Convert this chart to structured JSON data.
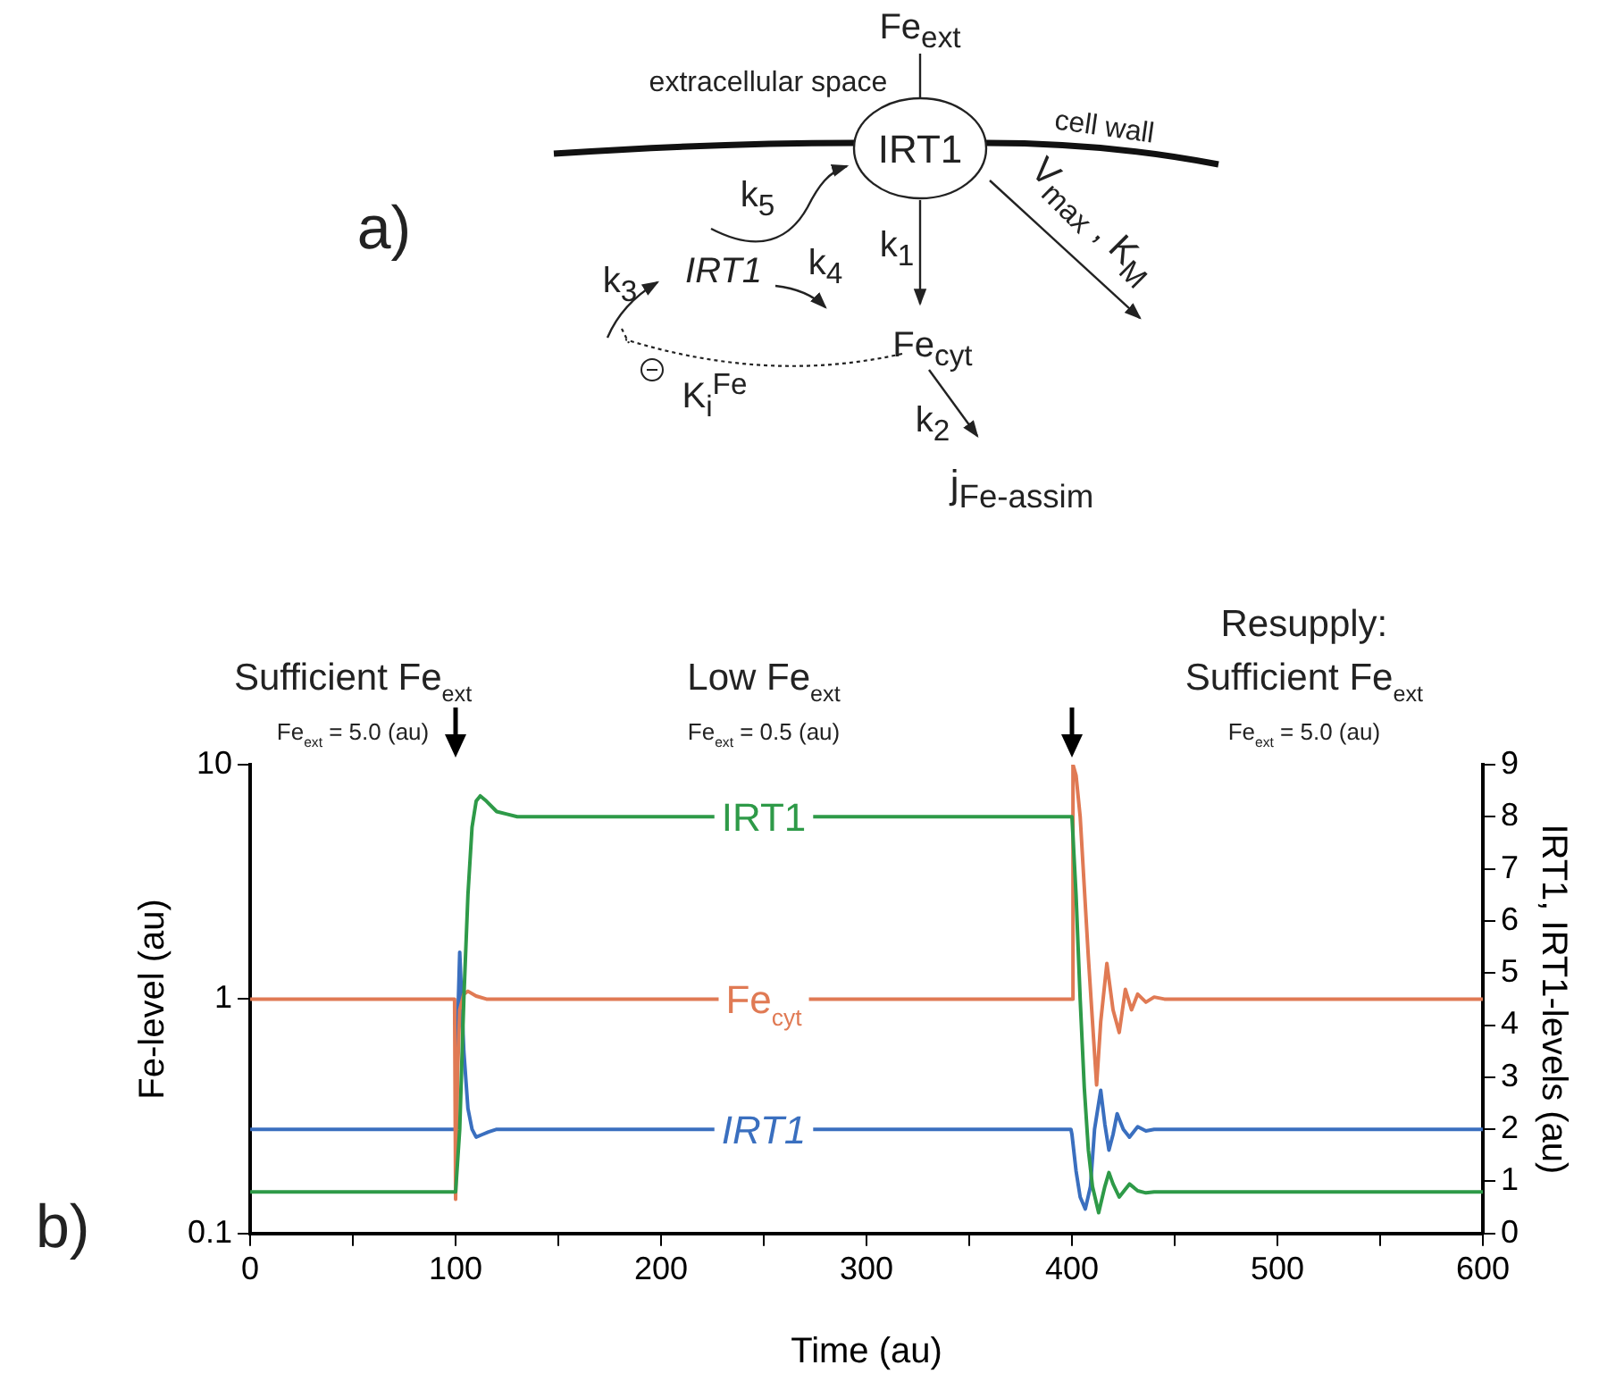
{
  "chart_data": [
    {
      "type": "other",
      "annotations": [
        "a)",
        "Fe$_{ext}$",
        "extracellular space",
        "cell wall",
        "IRT1",
        "k$_{5}$",
        "IRT1",
        "k$_{4}$",
        "k$_{3}$",
        "k$_{1}$",
        "V$_{max}$ , K$_{M}$",
        "Fe$_{cyt}$",
        "K$_{i}$$^{Fe}$",
        "k$_{2}$",
        "j$_{Fe-assim}$"
      ]
    },
    {
      "type": "line",
      "xlabel": "Time (au)",
      "ylabel": "Fe-level (au)",
      "y2label": "IRT1, IRT1-levels (au)",
      "log": "y",
      "xlim": [
        0,
        600
      ],
      "xticks": [
        0,
        {
          "value": 50,
          "label": null
        },
        100,
        {
          "value": 150,
          "label": null
        },
        200,
        {
          "value": 250,
          "label": null
        },
        300,
        {
          "value": 350,
          "label": null
        },
        400,
        {
          "value": 450,
          "label": null
        },
        500,
        {
          "value": 550,
          "label": null
        },
        600
      ],
      "ylim": [
        0.1,
        10
      ],
      "yticks": [
        0.1,
        1,
        10
      ],
      "y2lim": [
        0,
        9
      ],
      "y2ticks": [
        0,
        1,
        2,
        3,
        4,
        5,
        6,
        7,
        8,
        9
      ],
      "marker": "none",
      "line_style": "solid",
      "annotations": [
        "b)",
        "Sufficient Fe$_{ext}$",
        "Fe$_{ext}$ = 5.0 (au)",
        "Low Fe$_{ext}$",
        "Fe$_{ext}$ = 0.5 (au)",
        "Resupply: Sufficient Fe$_{ext}$",
        "Fe$_{ext}$ = 5.0 (au)"
      ],
      "series": [
        {
          "name": "IRT1",
          "color": "#2e9a48",
          "axis": "y2",
          "x": [
            0,
            99.5,
            100,
            102,
            104,
            106,
            108,
            110,
            112,
            115,
            120,
            125,
            130,
            140,
            400,
            402,
            404,
            406,
            408,
            410,
            413,
            416,
            418,
            420,
            423,
            426,
            428,
            432,
            436,
            440,
            450,
            600
          ],
          "values": [
            0.8,
            0.8,
            0.8,
            2,
            4.5,
            6.5,
            7.8,
            8.3,
            8.4,
            8.3,
            8.1,
            8.05,
            8,
            8,
            8,
            6.5,
            4.5,
            2.8,
            1.6,
            0.9,
            0.4,
            0.9,
            1.17,
            0.95,
            0.7,
            0.85,
            0.95,
            0.82,
            0.78,
            0.8,
            0.8,
            0.8
          ]
        },
        {
          "name": "Fe$_{cyt}$",
          "color": "#e07a54",
          "x": [
            0,
            99.5,
            100,
            101,
            102,
            104,
            106,
            110,
            115,
            120,
            130,
            400,
            400.5,
            402,
            404,
            406,
            408,
            410,
            412,
            414,
            417,
            420,
            423,
            426,
            429,
            432,
            436,
            440,
            445,
            600
          ],
          "values": [
            1,
            1,
            0.14,
            0.5,
            0.9,
            1.05,
            1.08,
            1.03,
            1,
            1,
            1,
            1,
            10,
            9,
            6,
            3,
            1.5,
            0.8,
            0.43,
            0.8,
            1.42,
            0.9,
            0.72,
            1.1,
            0.9,
            1.05,
            0.97,
            1.02,
            1,
            1
          ]
        },
        {
          "name": "IRT1",
          "color": "#3a6fbf",
          "axis": "y2",
          "x": [
            0,
            99.5,
            100,
            101,
            102,
            104,
            106,
            108,
            110,
            113,
            116,
            120,
            125,
            130,
            399.5,
            400,
            402,
            404,
            406.5,
            409,
            411,
            414,
            416,
            418,
            420,
            422,
            425,
            428,
            432,
            436,
            440,
            600
          ],
          "values": [
            2,
            2,
            2,
            4,
            5.4,
            3.5,
            2.4,
            2,
            1.85,
            1.9,
            1.95,
            2,
            2,
            2,
            2,
            1.9,
            1.2,
            0.7,
            0.47,
            0.9,
            2,
            2.75,
            2.1,
            1.6,
            1.9,
            2.3,
            2,
            1.85,
            2.05,
            1.97,
            2,
            2
          ]
        }
      ]
    }
  ]
}
